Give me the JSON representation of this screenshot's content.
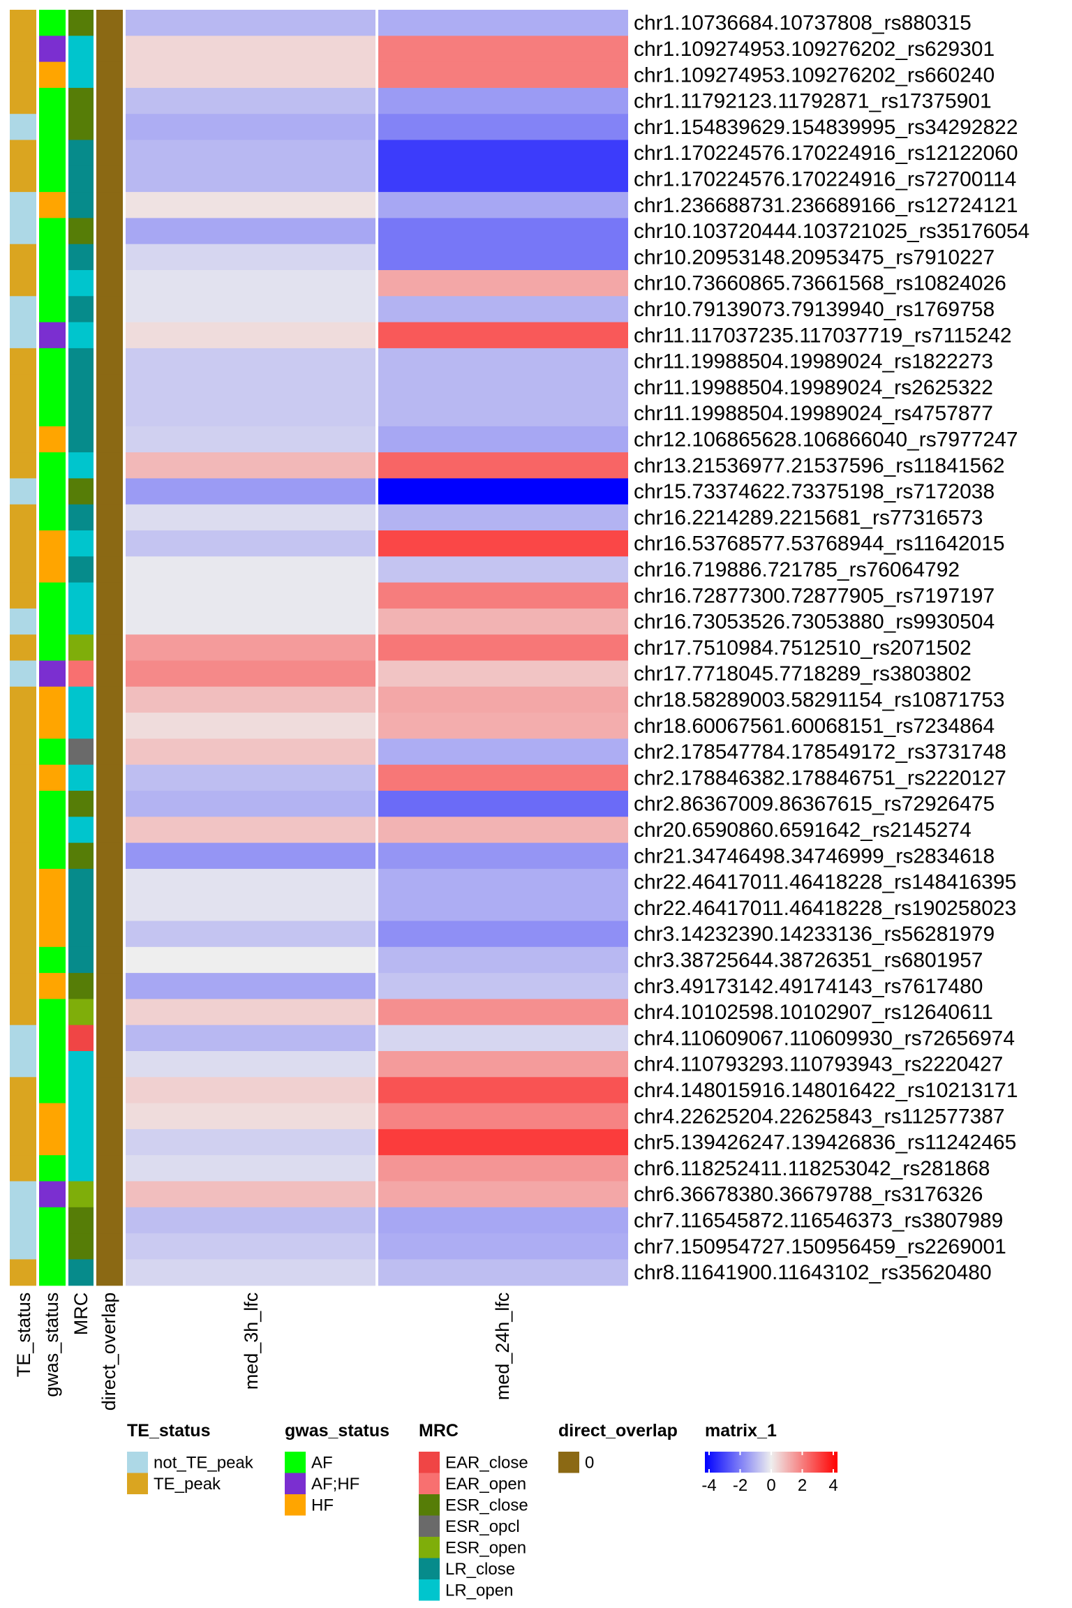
{
  "chart_data": {
    "type": "heatmap",
    "columns": [
      "med_3h_lfc",
      "med_24h_lfc"
    ],
    "annotation_columns": [
      "TE_status",
      "gwas_status",
      "MRC",
      "direct_overlap"
    ],
    "rows": [
      {
        "label": "chr1.10736684.10737808_rs880315",
        "te": "TE_peak",
        "gwas": "AF",
        "mrc": "ESR_close",
        "overlap": "0",
        "v3h": -0.9,
        "v24h": -1.1
      },
      {
        "label": "chr1.109274953.109276202_rs629301",
        "te": "TE_peak",
        "gwas": "AF;HF",
        "mrc": "LR_open",
        "overlap": "0",
        "v3h": 0.4,
        "v24h": 1.9
      },
      {
        "label": "chr1.109274953.109276202_rs660240",
        "te": "TE_peak",
        "gwas": "HF",
        "mrc": "LR_open",
        "overlap": "0",
        "v3h": 0.4,
        "v24h": 1.9
      },
      {
        "label": "chr1.11792123.11792871_rs17375901",
        "te": "TE_peak",
        "gwas": "AF",
        "mrc": "ESR_close",
        "overlap": "0",
        "v3h": -0.8,
        "v24h": -1.4
      },
      {
        "label": "chr1.154839629.154839995_rs34292822",
        "te": "not_TE_peak",
        "gwas": "AF",
        "mrc": "ESR_close",
        "overlap": "0",
        "v3h": -1.1,
        "v24h": -1.8
      },
      {
        "label": "chr1.170224576.170224916_rs12122060",
        "te": "TE_peak",
        "gwas": "AF",
        "mrc": "LR_close",
        "overlap": "0",
        "v3h": -0.9,
        "v24h": -3.0
      },
      {
        "label": "chr1.170224576.170224916_rs72700114",
        "te": "TE_peak",
        "gwas": "AF",
        "mrc": "LR_close",
        "overlap": "0",
        "v3h": -0.9,
        "v24h": -3.0
      },
      {
        "label": "chr1.236688731.236689166_rs12724121",
        "te": "not_TE_peak",
        "gwas": "HF",
        "mrc": "LR_close",
        "overlap": "0",
        "v3h": 0.2,
        "v24h": -1.2
      },
      {
        "label": "chr10.103720444.103721025_rs35176054",
        "te": "not_TE_peak",
        "gwas": "AF",
        "mrc": "ESR_close",
        "overlap": "0",
        "v3h": -1.2,
        "v24h": -2.0
      },
      {
        "label": "chr10.20953148.20953475_rs7910227",
        "te": "TE_peak",
        "gwas": "AF",
        "mrc": "LR_close",
        "overlap": "0",
        "v3h": -0.4,
        "v24h": -2.0
      },
      {
        "label": "chr10.73660865.73661568_rs10824026",
        "te": "TE_peak",
        "gwas": "AF",
        "mrc": "LR_open",
        "overlap": "0",
        "v3h": -0.2,
        "v24h": 1.2
      },
      {
        "label": "chr10.79139073.79139940_rs1769758",
        "te": "not_TE_peak",
        "gwas": "AF",
        "mrc": "LR_close",
        "overlap": "0",
        "v3h": -0.2,
        "v24h": -1.0
      },
      {
        "label": "chr11.117037235.117037719_rs7115242",
        "te": "not_TE_peak",
        "gwas": "AF;HF",
        "mrc": "LR_open",
        "overlap": "0",
        "v3h": 0.3,
        "v24h": 2.5
      },
      {
        "label": "chr11.19988504.19989024_rs1822273",
        "te": "TE_peak",
        "gwas": "AF",
        "mrc": "LR_close",
        "overlap": "0",
        "v3h": -0.6,
        "v24h": -0.9
      },
      {
        "label": "chr11.19988504.19989024_rs2625322",
        "te": "TE_peak",
        "gwas": "AF",
        "mrc": "LR_close",
        "overlap": "0",
        "v3h": -0.6,
        "v24h": -0.9
      },
      {
        "label": "chr11.19988504.19989024_rs4757877",
        "te": "TE_peak",
        "gwas": "AF",
        "mrc": "LR_close",
        "overlap": "0",
        "v3h": -0.6,
        "v24h": -0.9
      },
      {
        "label": "chr12.106865628.106866040_rs7977247",
        "te": "TE_peak",
        "gwas": "HF",
        "mrc": "LR_close",
        "overlap": "0",
        "v3h": -0.5,
        "v24h": -1.2
      },
      {
        "label": "chr13.21536977.21537596_rs11841562",
        "te": "TE_peak",
        "gwas": "AF",
        "mrc": "LR_open",
        "overlap": "0",
        "v3h": 0.9,
        "v24h": 2.3
      },
      {
        "label": "chr15.73374622.73375198_rs7172038",
        "te": "not_TE_peak",
        "gwas": "AF",
        "mrc": "ESR_close",
        "overlap": "0",
        "v3h": -1.4,
        "v24h": -4.3
      },
      {
        "label": "chr16.2214289.2215681_rs77316573",
        "te": "TE_peak",
        "gwas": "AF",
        "mrc": "LR_close",
        "overlap": "0",
        "v3h": -0.3,
        "v24h": -1.0
      },
      {
        "label": "chr16.53768577.53768944_rs11642015",
        "te": "TE_peak",
        "gwas": "HF",
        "mrc": "LR_open",
        "overlap": "0",
        "v3h": -0.7,
        "v24h": 2.8
      },
      {
        "label": "chr16.719886.721785_rs76064792",
        "te": "TE_peak",
        "gwas": "HF",
        "mrc": "LR_close",
        "overlap": "0",
        "v3h": -0.1,
        "v24h": -0.7
      },
      {
        "label": "chr16.72877300.72877905_rs7197197",
        "te": "TE_peak",
        "gwas": "AF",
        "mrc": "LR_open",
        "overlap": "0",
        "v3h": -0.1,
        "v24h": 1.9
      },
      {
        "label": "chr16.73053526.73053880_rs9930504",
        "te": "not_TE_peak",
        "gwas": "AF",
        "mrc": "LR_open",
        "overlap": "0",
        "v3h": -0.1,
        "v24h": 1.0
      },
      {
        "label": "chr17.7510984.7512510_rs2071502",
        "te": "TE_peak",
        "gwas": "AF",
        "mrc": "ESR_open",
        "overlap": "0",
        "v3h": 1.4,
        "v24h": 2.0
      },
      {
        "label": "chr17.7718045.7718289_rs3803802",
        "te": "not_TE_peak",
        "gwas": "AF;HF",
        "mrc": "EAR_open",
        "overlap": "0",
        "v3h": 1.7,
        "v24h": 0.7
      },
      {
        "label": "chr18.58289003.58291154_rs10871753",
        "te": "TE_peak",
        "gwas": "HF",
        "mrc": "LR_open",
        "overlap": "0",
        "v3h": 0.8,
        "v24h": 1.2
      },
      {
        "label": "chr18.60067561.60068151_rs7234864",
        "te": "TE_peak",
        "gwas": "HF",
        "mrc": "LR_open",
        "overlap": "0",
        "v3h": 0.3,
        "v24h": 1.1
      },
      {
        "label": "chr2.178547784.178549172_rs3731748",
        "te": "TE_peak",
        "gwas": "AF",
        "mrc": "ESR_opcl",
        "overlap": "0",
        "v3h": 0.7,
        "v24h": -1.1
      },
      {
        "label": "chr2.178846382.178846751_rs2220127",
        "te": "TE_peak",
        "gwas": "HF",
        "mrc": "LR_open",
        "overlap": "0",
        "v3h": -0.8,
        "v24h": 2.0
      },
      {
        "label": "chr2.86367009.86367615_rs72926475",
        "te": "TE_peak",
        "gwas": "AF",
        "mrc": "ESR_close",
        "overlap": "0",
        "v3h": -1.0,
        "v24h": -2.2
      },
      {
        "label": "chr20.6590860.6591642_rs2145274",
        "te": "TE_peak",
        "gwas": "AF",
        "mrc": "LR_open",
        "overlap": "0",
        "v3h": 0.7,
        "v24h": 1.0
      },
      {
        "label": "chr21.34746498.34746999_rs2834618",
        "te": "TE_peak",
        "gwas": "AF",
        "mrc": "ESR_close",
        "overlap": "0",
        "v3h": -1.5,
        "v24h": -1.5
      },
      {
        "label": "chr22.46417011.46418228_rs148416395",
        "te": "TE_peak",
        "gwas": "HF",
        "mrc": "LR_close",
        "overlap": "0",
        "v3h": -0.2,
        "v24h": -1.1
      },
      {
        "label": "chr22.46417011.46418228_rs190258023",
        "te": "TE_peak",
        "gwas": "HF",
        "mrc": "LR_close",
        "overlap": "0",
        "v3h": -0.2,
        "v24h": -1.1
      },
      {
        "label": "chr3.14232390.14233136_rs56281979",
        "te": "TE_peak",
        "gwas": "HF",
        "mrc": "LR_close",
        "overlap": "0",
        "v3h": -0.7,
        "v24h": -1.6
      },
      {
        "label": "chr3.38725644.38726351_rs6801957",
        "te": "TE_peak",
        "gwas": "AF",
        "mrc": "LR_close",
        "overlap": "0",
        "v3h": 0.0,
        "v24h": -0.9
      },
      {
        "label": "chr3.49173142.49174143_rs7617480",
        "te": "TE_peak",
        "gwas": "HF",
        "mrc": "ESR_close",
        "overlap": "0",
        "v3h": -1.2,
        "v24h": -0.7
      },
      {
        "label": "chr4.10102598.10102907_rs12640611",
        "te": "TE_peak",
        "gwas": "AF",
        "mrc": "ESR_open",
        "overlap": "0",
        "v3h": 0.5,
        "v24h": 1.6
      },
      {
        "label": "chr4.110609067.110609930_rs72656974",
        "te": "not_TE_peak",
        "gwas": "AF",
        "mrc": "EAR_close",
        "overlap": "0",
        "v3h": -0.9,
        "v24h": -0.4
      },
      {
        "label": "chr4.110793293.110793943_rs2220427",
        "te": "not_TE_peak",
        "gwas": "AF",
        "mrc": "LR_open",
        "overlap": "0",
        "v3h": -0.3,
        "v24h": 1.4
      },
      {
        "label": "chr4.148015916.148016422_rs10213171",
        "te": "TE_peak",
        "gwas": "AF",
        "mrc": "LR_open",
        "overlap": "0",
        "v3h": 0.5,
        "v24h": 2.6
      },
      {
        "label": "chr4.22625204.22625843_rs112577387",
        "te": "TE_peak",
        "gwas": "HF",
        "mrc": "LR_open",
        "overlap": "0",
        "v3h": 0.3,
        "v24h": 1.8
      },
      {
        "label": "chr5.139426247.139426836_rs11242465",
        "te": "TE_peak",
        "gwas": "HF",
        "mrc": "LR_open",
        "overlap": "0",
        "v3h": -0.5,
        "v24h": 3.0
      },
      {
        "label": "chr6.118252411.118253042_rs281868",
        "te": "TE_peak",
        "gwas": "AF",
        "mrc": "LR_open",
        "overlap": "0",
        "v3h": -0.3,
        "v24h": 1.5
      },
      {
        "label": "chr6.36678380.36679788_rs3176326",
        "te": "not_TE_peak",
        "gwas": "AF;HF",
        "mrc": "ESR_open",
        "overlap": "0",
        "v3h": 0.8,
        "v24h": 1.2
      },
      {
        "label": "chr7.116545872.116546373_rs3807989",
        "te": "not_TE_peak",
        "gwas": "AF",
        "mrc": "ESR_close",
        "overlap": "0",
        "v3h": -0.8,
        "v24h": -1.2
      },
      {
        "label": "chr7.150954727.150956459_rs2269001",
        "te": "not_TE_peak",
        "gwas": "AF",
        "mrc": "ESR_close",
        "overlap": "0",
        "v3h": -0.6,
        "v24h": -1.1
      },
      {
        "label": "chr8.11641900.11643102_rs35620480",
        "te": "TE_peak",
        "gwas": "AF",
        "mrc": "LR_close",
        "overlap": "0",
        "v3h": -0.4,
        "v24h": -0.8
      }
    ],
    "color_scale": {
      "title": "matrix_1",
      "domain": [
        -4,
        0,
        4
      ],
      "colors": [
        "#0000FF",
        "#EEEEEE",
        "#FF0000"
      ],
      "ticks": [
        "-4",
        "-2",
        "0",
        "2",
        "4"
      ]
    },
    "legends": [
      {
        "title": "TE_status",
        "key": "te",
        "items": [
          {
            "label": "not_TE_peak",
            "color": "#ADD8E6"
          },
          {
            "label": "TE_peak",
            "color": "#DAA520"
          }
        ]
      },
      {
        "title": "gwas_status",
        "key": "gwas",
        "items": [
          {
            "label": "AF",
            "color": "#00FF00"
          },
          {
            "label": "AF;HF",
            "color": "#7B2FD0"
          },
          {
            "label": "HF",
            "color": "#FFA500"
          }
        ]
      },
      {
        "title": "MRC",
        "key": "mrc",
        "items": [
          {
            "label": "EAR_close",
            "color": "#F04545"
          },
          {
            "label": "EAR_open",
            "color": "#F87070"
          },
          {
            "label": "ESR_close",
            "color": "#567D07"
          },
          {
            "label": "ESR_opcl",
            "color": "#6A6A6A"
          },
          {
            "label": "ESR_open",
            "color": "#7FAE0A"
          },
          {
            "label": "LR_close",
            "color": "#068B8B"
          },
          {
            "label": "LR_open",
            "color": "#00C5CD"
          }
        ]
      },
      {
        "title": "direct_overlap",
        "key": "overlap",
        "items": [
          {
            "label": "0",
            "color": "#8B6914"
          }
        ]
      }
    ]
  }
}
